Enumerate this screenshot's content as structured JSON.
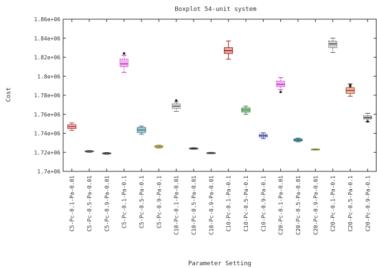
{
  "chart_data": {
    "type": "boxplot",
    "title": "Boxplot 54-unit system",
    "xlabel": "Parameter Setting",
    "ylabel": "Cost",
    "ylim": [
      1700000,
      1860000
    ],
    "yticks": [
      1700000,
      1720000,
      1740000,
      1760000,
      1780000,
      1800000,
      1820000,
      1840000,
      1860000
    ],
    "ytick_labels": [
      "1.7e+06",
      "1.72e+06",
      "1.74e+06",
      "1.76e+06",
      "1.78e+06",
      "1.8e+06",
      "1.82e+06",
      "1.84e+06",
      "1.86e+06"
    ],
    "grid": false,
    "categories": [
      "C5-Pc-0.1-Pa-0.01",
      "C5-Pc-0.5-Pa-0.01",
      "C5-Pc-0.9-Pa-0.01",
      "C5-Pc-0.1-Pa-0.1",
      "C5-Pc-0.5-Pa-0.1",
      "C5-Pc-0.9-Pa-0.1",
      "C10-Pc-0.1-Pa-0.01",
      "C10-Pc-0.5-Pa-0.01",
      "C10-Pc-0.9-Pa-0.01",
      "C10-Pc-0.1-Pa-0.1",
      "C10-Pc-0.5-Pa-0.1",
      "C10-Pc-0.9-Pa-0.1",
      "C20-Pc-0.1-Pa-0.01",
      "C20-Pc-0.5-Pa-0.01",
      "C20-Pc-0.9-Pa-0.01",
      "C20-Pc-0.1-Pa-0.1",
      "C20-Pc-0.5-Pa-0.1",
      "C20-Pc-0.9-Pa-0.1"
    ],
    "boxes": [
      {
        "whisker_low": 1743000,
        "q1": 1745000,
        "median": 1747000,
        "q3": 1749000,
        "whisker_high": 1751000,
        "outliers": [],
        "color": "#b04040",
        "fill": "#f3c9c2",
        "style": "solid"
      },
      {
        "whisker_low": 1720000,
        "q1": 1720500,
        "median": 1721000,
        "q3": 1721500,
        "whisker_high": 1722000,
        "outliers": [],
        "color": "#555555",
        "fill": "#dddddd",
        "style": "solid"
      },
      {
        "whisker_low": 1718000,
        "q1": 1718500,
        "median": 1719000,
        "q3": 1719300,
        "whisker_high": 1719800,
        "outliers": [],
        "color": "#444444",
        "fill": "#cccccc",
        "style": "solid"
      },
      {
        "whisker_low": 1804000,
        "q1": 1810000,
        "median": 1813000,
        "q3": 1818000,
        "whisker_high": 1822000,
        "outliers": [
          1824000
        ],
        "color": "#c030c0",
        "fill": "#f4b6f0",
        "style": "dotted"
      },
      {
        "whisker_low": 1739000,
        "q1": 1741000,
        "median": 1743500,
        "q3": 1746000,
        "whisker_high": 1747500,
        "outliers": [],
        "color": "#2f6f7a",
        "fill": "#b9dde0",
        "style": "solid"
      },
      {
        "whisker_low": 1724500,
        "q1": 1725000,
        "median": 1726000,
        "q3": 1727000,
        "whisker_high": 1727500,
        "outliers": [],
        "color": "#8a7a2a",
        "fill": "#eae3a2",
        "style": "dotted"
      },
      {
        "whisker_low": 1763000,
        "q1": 1766000,
        "median": 1768500,
        "q3": 1771000,
        "whisker_high": 1773000,
        "outliers": [
          1774500
        ],
        "color": "#666666",
        "fill": "#d8d8d8",
        "style": "dotted"
      },
      {
        "whisker_low": 1723300,
        "q1": 1723700,
        "median": 1724000,
        "q3": 1724400,
        "whisker_high": 1724800,
        "outliers": [],
        "color": "#333333",
        "fill": "#c4c4c4",
        "style": "solid"
      },
      {
        "whisker_low": 1718600,
        "q1": 1719000,
        "median": 1719300,
        "q3": 1719600,
        "whisker_high": 1720000,
        "outliers": [],
        "color": "#444444",
        "fill": "#cccccc",
        "style": "solid"
      },
      {
        "whisker_low": 1818000,
        "q1": 1824000,
        "median": 1827000,
        "q3": 1830000,
        "whisker_high": 1837000,
        "outliers": [],
        "color": "#9c2020",
        "fill": "#f0b6ae",
        "style": "solid"
      },
      {
        "whisker_low": 1760000,
        "q1": 1762500,
        "median": 1764500,
        "q3": 1766500,
        "whisker_high": 1768500,
        "outliers": [],
        "color": "#2f7a3a",
        "fill": "#c5e8c0",
        "style": "solid"
      },
      {
        "whisker_low": 1734500,
        "q1": 1736000,
        "median": 1737500,
        "q3": 1739000,
        "whisker_high": 1740500,
        "outliers": [],
        "color": "#3a3aa0",
        "fill": "#c3c3ef",
        "style": "dotted"
      },
      {
        "whisker_low": 1786000,
        "q1": 1789000,
        "median": 1791500,
        "q3": 1795000,
        "whisker_high": 1798500,
        "outliers": [
          1783500
        ],
        "color": "#c030c0",
        "fill": "#f4b6f0",
        "style": "dotted"
      },
      {
        "whisker_low": 1731000,
        "q1": 1732000,
        "median": 1733000,
        "q3": 1734000,
        "whisker_high": 1735000,
        "outliers": [],
        "color": "#2f6f7a",
        "fill": "#b9dde0",
        "style": "solid"
      },
      {
        "whisker_low": 1722500,
        "q1": 1722800,
        "median": 1723000,
        "q3": 1723300,
        "whisker_high": 1723600,
        "outliers": [],
        "color": "#7a7a2a",
        "fill": "#e6e0a6",
        "style": "dotted"
      },
      {
        "whisker_low": 1825000,
        "q1": 1830000,
        "median": 1834000,
        "q3": 1837000,
        "whisker_high": 1840000,
        "outliers": [],
        "color": "#555555",
        "fill": "#cfcfcf",
        "style": "dotted"
      },
      {
        "whisker_low": 1779000,
        "q1": 1782000,
        "median": 1785000,
        "q3": 1788000,
        "whisker_high": 1792000,
        "outliers": [
          1791000,
          1789500
        ],
        "color": "#a04020",
        "fill": "#f2c6b2",
        "style": "solid"
      },
      {
        "whisker_low": 1752000,
        "q1": 1755000,
        "median": 1756500,
        "q3": 1758500,
        "whisker_high": 1761000,
        "outliers": [
          1752500
        ],
        "color": "#444444",
        "fill": "#d4d4d4",
        "style": "dotted"
      }
    ]
  }
}
